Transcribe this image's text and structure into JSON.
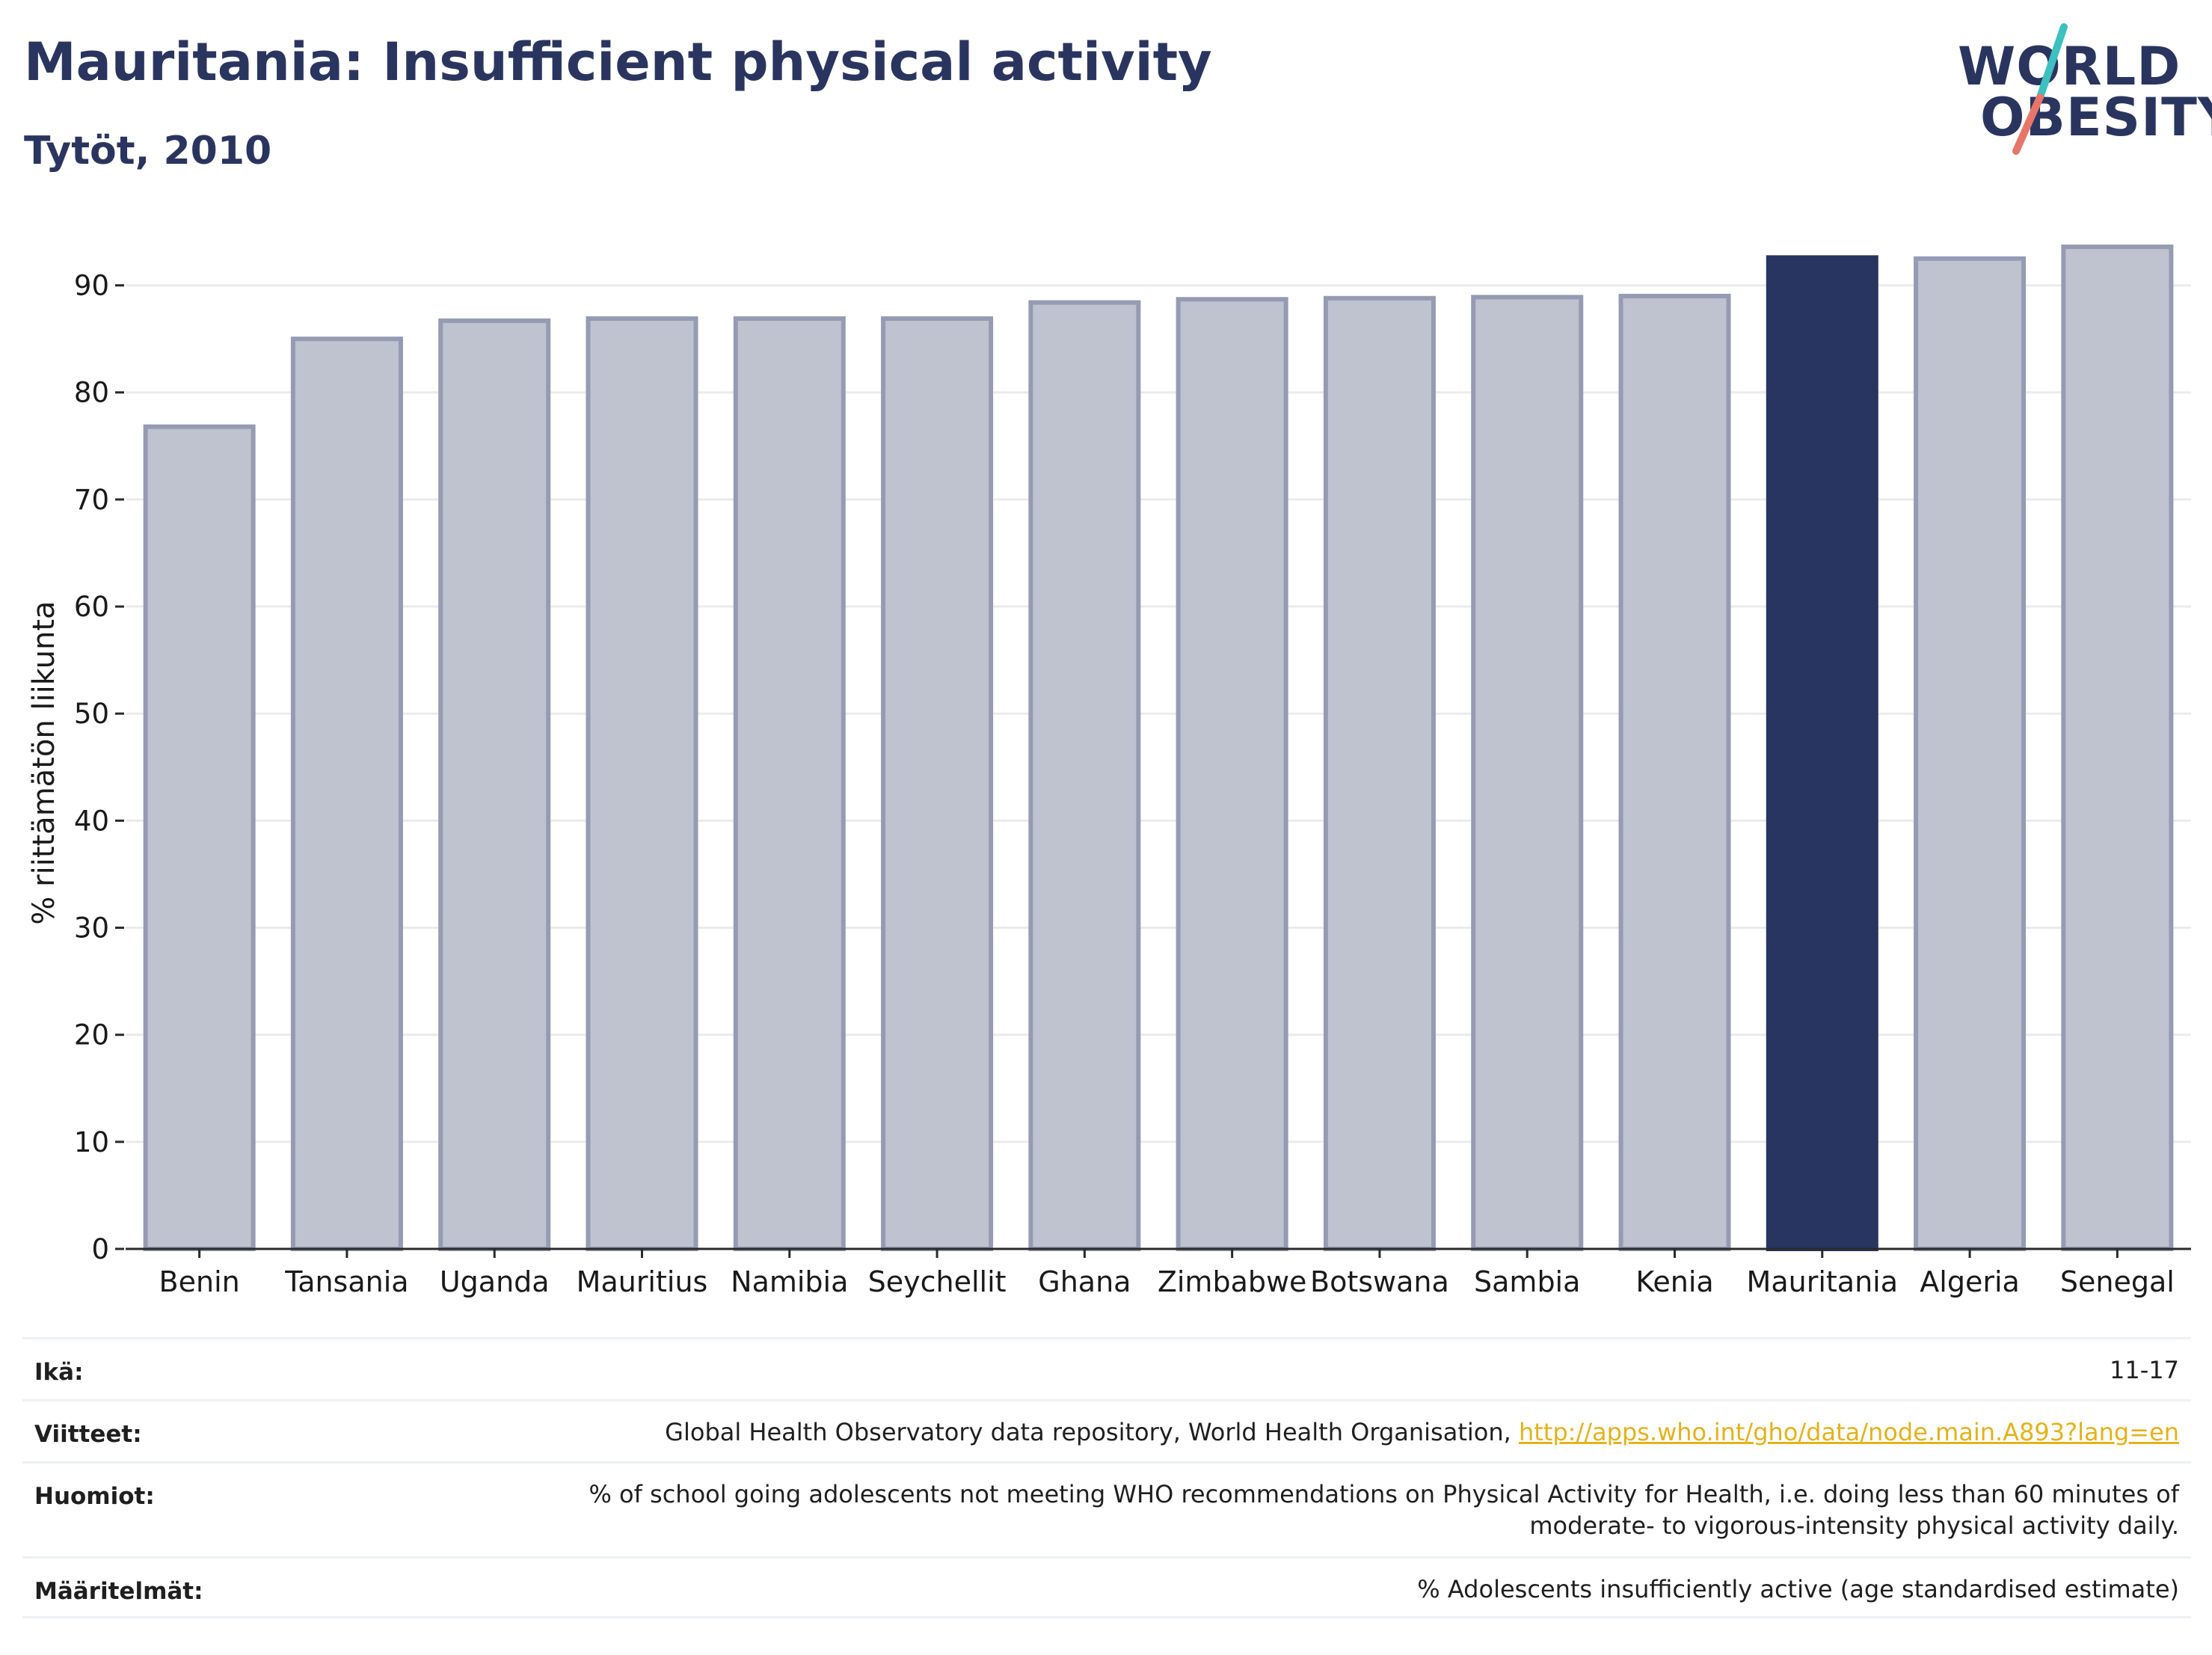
{
  "header": {
    "title": "Mauritania: Insufficient physical activity",
    "subtitle": "Tytöt, 2010"
  },
  "logo": {
    "line1": "WORLD",
    "line2": "OBESITY",
    "slash_colors": [
      "#3cc0c0",
      "#e8756a"
    ]
  },
  "chart_data": {
    "type": "bar",
    "title": "Mauritania: Insufficient physical activity",
    "subtitle": "Tytöt, 2010",
    "xlabel": "",
    "ylabel": "% riittämätön liikunta",
    "ylim": [
      0,
      95
    ],
    "yticks": [
      0,
      10,
      20,
      30,
      40,
      50,
      60,
      70,
      80,
      90
    ],
    "grid": true,
    "categories": [
      "Benin",
      "Tansania",
      "Uganda",
      "Mauritius",
      "Namibia",
      "Seychellit",
      "Ghana",
      "Zimbabwe",
      "Botswana",
      "Sambia",
      "Kenia",
      "Mauritania",
      "Algeria",
      "Senegal"
    ],
    "values": [
      76.8,
      85.0,
      86.7,
      86.9,
      86.9,
      86.9,
      88.4,
      88.7,
      88.8,
      88.9,
      89.0,
      92.6,
      92.5,
      93.6
    ],
    "highlight": "Mauritania",
    "colors": {
      "bar_fill": "#bfc2cf",
      "bar_stroke": "#969bb3",
      "highlight_fill": "#283560",
      "grid": "#ebebeb",
      "axis": "#2a2a2a",
      "text": "#1a1a1a"
    }
  },
  "footer": {
    "rows": [
      {
        "label": "Ikä:",
        "value": "11-17"
      },
      {
        "label": "Viitteet:",
        "value": "Global Health Observatory data repository, World Health Organisation, ",
        "link": "http://apps.who.int/gho/data/node.main.A893?lang=en"
      },
      {
        "label": "Huomiot:",
        "value": "% of school going adolescents not meeting WHO recommendations on Physical Activity for Health, i.e. doing less than 60 minutes of",
        "value2": "moderate- to vigorous-intensity physical activity daily."
      },
      {
        "label": "Määritelmät:",
        "value": "% Adolescents insufficiently active (age standardised estimate)"
      }
    ]
  }
}
